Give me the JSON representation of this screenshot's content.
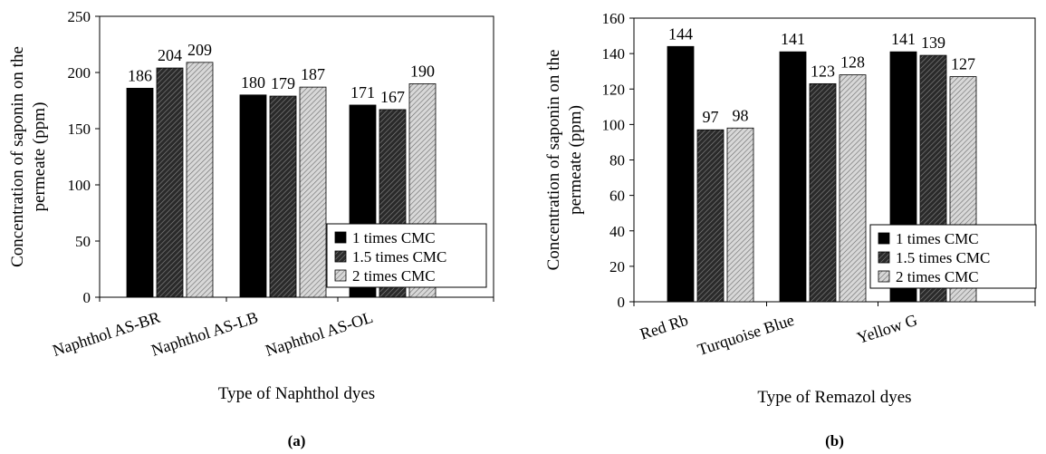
{
  "chart_data": [
    {
      "panel_label": "(a)",
      "type": "bar",
      "title": "",
      "xlabel": "Type of Naphthol dyes",
      "ylabel_line1": "Concentration of saponin on the",
      "ylabel_line2": "permeate (ppm)",
      "categories": [
        "Naphthol AS-BR",
        "Naphthol AS-LB",
        "Naphthol AS-OL"
      ],
      "ylim": [
        0,
        250
      ],
      "yticks": [
        0,
        50,
        100,
        150,
        200,
        250
      ],
      "legend_position": "bottom-right",
      "series": [
        {
          "name": "1 times CMC",
          "values": [
            186,
            180,
            171
          ],
          "color": "#000000",
          "pattern": "solid"
        },
        {
          "name": "1.5 times CMC",
          "values": [
            204,
            179,
            167
          ],
          "color": "#404040",
          "pattern": "dense-hatch"
        },
        {
          "name": "2 times CMC",
          "values": [
            209,
            187,
            190
          ],
          "color": "#b0b0b0",
          "pattern": "light-hatch"
        }
      ]
    },
    {
      "panel_label": "(b)",
      "type": "bar",
      "title": "",
      "xlabel": "Type of Remazol dyes",
      "ylabel_line1": "Concentration of saponin on the",
      "ylabel_line2": "permeate (ppm)",
      "categories": [
        "Red Rb",
        "Turquoise Blue",
        "Yellow G"
      ],
      "ylim": [
        0,
        160
      ],
      "yticks": [
        0,
        20,
        40,
        60,
        80,
        100,
        120,
        140,
        160
      ],
      "legend_position": "bottom-right",
      "series": [
        {
          "name": "1 times CMC",
          "values": [
            144,
            141,
            141
          ],
          "color": "#000000",
          "pattern": "solid"
        },
        {
          "name": "1.5 times CMC",
          "values": [
            97,
            123,
            139
          ],
          "color": "#404040",
          "pattern": "dense-hatch"
        },
        {
          "name": "2 times CMC",
          "values": [
            98,
            128,
            127
          ],
          "color": "#b0b0b0",
          "pattern": "light-hatch"
        }
      ]
    }
  ]
}
